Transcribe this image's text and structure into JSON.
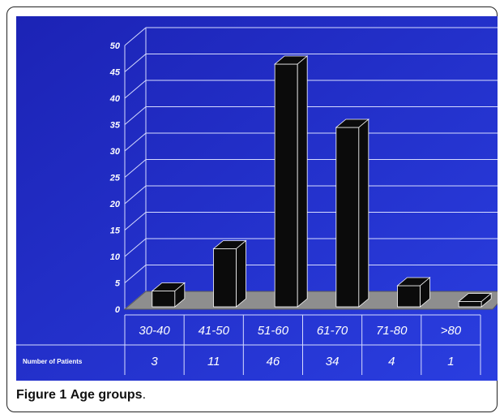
{
  "chart_data": {
    "type": "bar",
    "categories": [
      "30-40",
      "41-50",
      "51-60",
      "61-70",
      "71-80",
      ">80"
    ],
    "values": [
      3,
      11,
      46,
      34,
      4,
      1
    ],
    "ylim": [
      0,
      50
    ],
    "yticks": [
      "0",
      "5",
      "10",
      "15",
      "20",
      "25",
      "30",
      "35",
      "40",
      "45",
      "50"
    ],
    "table_row_label": "Number of Patients",
    "grid": true,
    "colors": {
      "background": "#1a22b8",
      "bar": "#0b0b0b",
      "floor": "#8e8e8e",
      "text": "#ffffff"
    }
  },
  "caption": {
    "label": "Figure 1",
    "title": "Age groups",
    "punct": "."
  }
}
